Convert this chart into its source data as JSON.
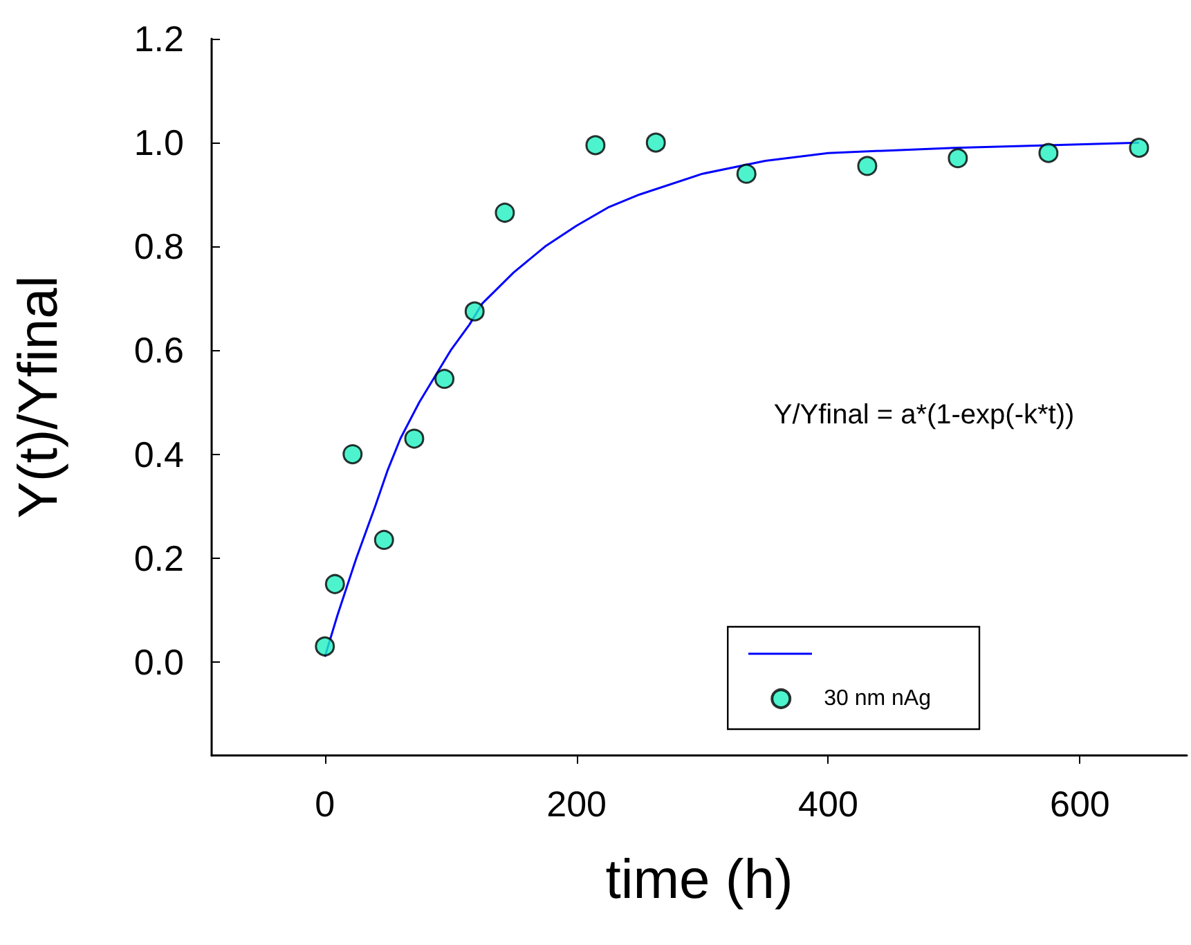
{
  "chart_data": {
    "type": "scatter",
    "xlabel": "time (h)",
    "ylabel": "Y(t)/Yfinal",
    "annotations": [
      "Y/Yfinal = a*(1-exp(-k*t))"
    ],
    "series": [
      {
        "type": "line",
        "marker": "none",
        "color": "#0000ff",
        "x": [
          0,
          10,
          25,
          40,
          50,
          60,
          75,
          90,
          100,
          115,
          125,
          150,
          175,
          200,
          225,
          250,
          300,
          350,
          400,
          450,
          500,
          575,
          647
        ],
        "values": [
          0.01,
          0.09,
          0.2,
          0.3,
          0.37,
          0.43,
          0.5,
          0.56,
          0.6,
          0.65,
          0.69,
          0.75,
          0.8,
          0.84,
          0.875,
          0.9,
          0.94,
          0.965,
          0.98,
          0.985,
          0.99,
          0.995,
          1.0
        ]
      },
      {
        "name": "30 nm nAg",
        "color": "#20f0c0",
        "x": [
          0,
          8,
          22,
          47,
          71,
          95,
          119,
          143,
          215,
          263,
          335,
          431,
          503,
          575,
          647
        ],
        "values": [
          0.03,
          0.15,
          0.4,
          0.235,
          0.43,
          0.545,
          0.675,
          0.865,
          0.995,
          1.0,
          0.94,
          0.955,
          0.97,
          0.98,
          0.99
        ]
      }
    ],
    "xlim": [
      -90,
      685
    ],
    "xticks": [
      0,
      200,
      400,
      600
    ],
    "ylim": [
      -0.18,
      1.2
    ],
    "yticks": [
      {
        "value": 0,
        "label": "0.0"
      },
      {
        "value": 0.2,
        "label": "0.2"
      },
      {
        "value": 0.4,
        "label": "0.4"
      },
      {
        "value": 0.6,
        "label": "0.6"
      },
      {
        "value": 0.8,
        "label": "0.8"
      },
      {
        "value": 1.0,
        "label": "1.0"
      },
      {
        "value": 1.2,
        "label": "1.2"
      }
    ],
    "legend": "bottom right",
    "marker": "circle",
    "grid": false
  }
}
